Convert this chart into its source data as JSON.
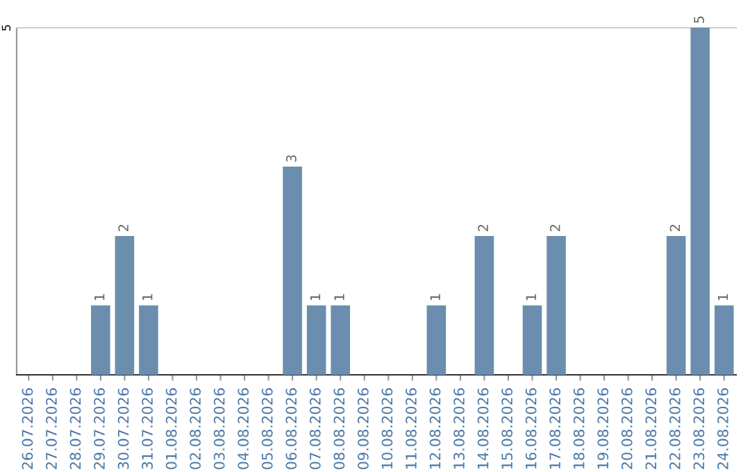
{
  "chart_data": {
    "type": "bar",
    "categories": [
      "26.07.2026",
      "27.07.2026",
      "28.07.2026",
      "29.07.2026",
      "30.07.2026",
      "31.07.2026",
      "01.08.2026",
      "02.08.2026",
      "03.08.2026",
      "04.08.2026",
      "05.08.2026",
      "06.08.2026",
      "07.08.2026",
      "08.08.2026",
      "09.08.2026",
      "10.08.2026",
      "11.08.2026",
      "12.08.2026",
      "13.08.2026",
      "14.08.2026",
      "15.08.2026",
      "16.08.2026",
      "17.08.2026",
      "18.08.2026",
      "19.08.2026",
      "20.08.2026",
      "21.08.2026",
      "22.08.2026",
      "23.08.2026",
      "24.08.2026"
    ],
    "values": [
      0,
      0,
      0,
      1,
      2,
      1,
      0,
      0,
      0,
      0,
      0,
      3,
      1,
      1,
      0,
      0,
      0,
      1,
      0,
      2,
      0,
      1,
      2,
      0,
      0,
      0,
      0,
      2,
      5,
      1
    ],
    "color": "#6b8eae",
    "value_labels": [
      null,
      null,
      null,
      "1",
      "2",
      "1",
      null,
      null,
      null,
      null,
      null,
      "3",
      "1",
      "1",
      null,
      null,
      null,
      "1",
      null,
      "2",
      null,
      "1",
      "2",
      null,
      null,
      null,
      null,
      "2",
      "5",
      "1"
    ],
    "ylim": [
      0,
      5
    ],
    "yticks": [
      5
    ]
  }
}
